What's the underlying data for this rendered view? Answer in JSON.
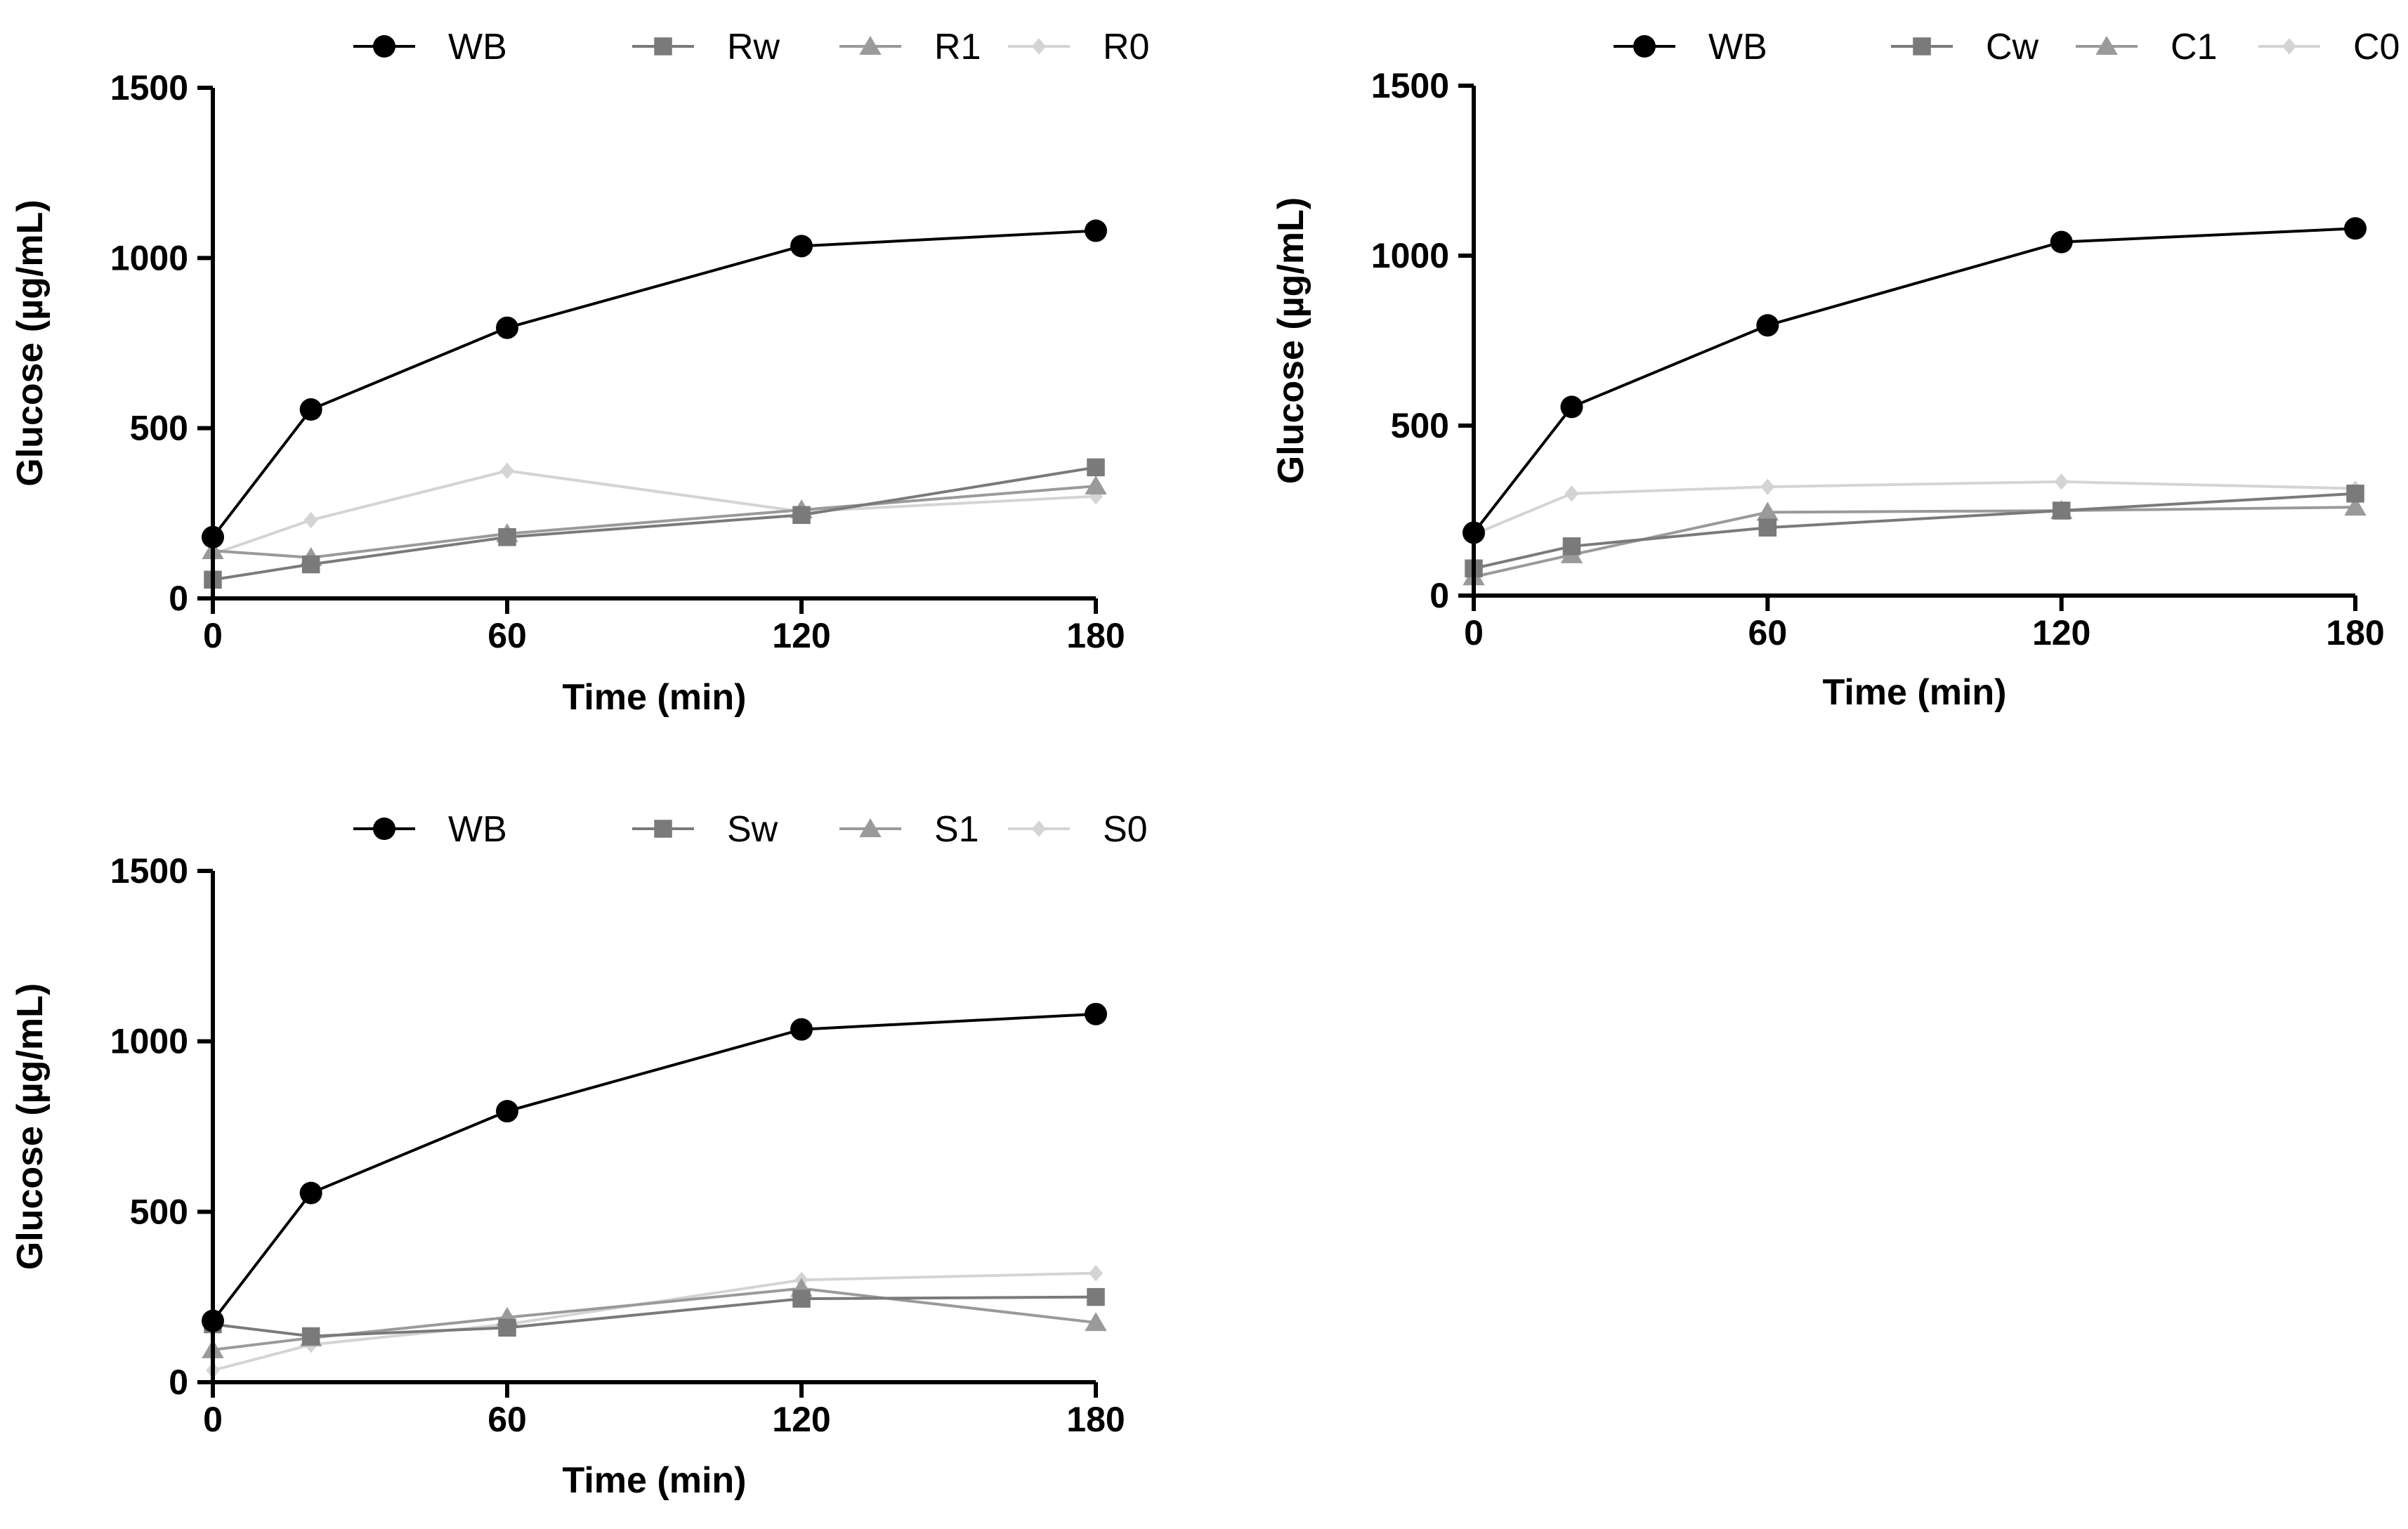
{
  "chart_data": [
    {
      "type": "line",
      "xlabel": "Time (min)",
      "ylabel": "Glucose (µg/mL)",
      "xlim": [
        0,
        180
      ],
      "ylim": [
        0,
        1500
      ],
      "xticks": [
        0,
        60,
        120,
        180
      ],
      "yticks": [
        0,
        500,
        1000,
        1500
      ],
      "x": [
        0,
        20,
        60,
        120,
        180
      ],
      "legend_position": "top",
      "series": [
        {
          "name": "WB",
          "marker": "circle",
          "color": "#000000",
          "values": [
            180,
            555,
            795,
            1035,
            1080
          ]
        },
        {
          "name": "Rw",
          "marker": "square",
          "color": "#7a7a7a",
          "values": [
            55,
            100,
            180,
            245,
            385
          ]
        },
        {
          "name": "R1",
          "marker": "triangle",
          "color": "#9a9a9a",
          "values": [
            140,
            120,
            190,
            260,
            330
          ]
        },
        {
          "name": "R0",
          "marker": "diamond",
          "color": "#d4d4d4",
          "values": [
            130,
            230,
            375,
            255,
            300
          ]
        }
      ]
    },
    {
      "type": "line",
      "xlabel": "Time (min)",
      "ylabel": "Glucose (µg/mL)",
      "xlim": [
        0,
        180
      ],
      "ylim": [
        0,
        1500
      ],
      "xticks": [
        0,
        60,
        120,
        180
      ],
      "yticks": [
        0,
        500,
        1000,
        1500
      ],
      "x": [
        0,
        20,
        60,
        120,
        180
      ],
      "legend_position": "top",
      "series": [
        {
          "name": "WB",
          "marker": "circle",
          "color": "#000000",
          "values": [
            185,
            555,
            795,
            1040,
            1080
          ]
        },
        {
          "name": "Cw",
          "marker": "square",
          "color": "#7a7a7a",
          "values": [
            80,
            145,
            200,
            250,
            300
          ]
        },
        {
          "name": "C1",
          "marker": "triangle",
          "color": "#9a9a9a",
          "values": [
            55,
            120,
            245,
            250,
            260
          ]
        },
        {
          "name": "C0",
          "marker": "diamond",
          "color": "#d4d4d4",
          "values": [
            180,
            300,
            320,
            335,
            315
          ]
        }
      ]
    },
    {
      "type": "line",
      "xlabel": "Time (min)",
      "ylabel": "Glucose (µg/mL)",
      "xlim": [
        0,
        180
      ],
      "ylim": [
        0,
        1500
      ],
      "xticks": [
        0,
        60,
        120,
        180
      ],
      "yticks": [
        0,
        500,
        1000,
        1500
      ],
      "x": [
        0,
        20,
        60,
        120,
        180
      ],
      "legend_position": "top",
      "series": [
        {
          "name": "WB",
          "marker": "circle",
          "color": "#000000",
          "values": [
            180,
            555,
            795,
            1035,
            1080
          ]
        },
        {
          "name": "Sw",
          "marker": "square",
          "color": "#7a7a7a",
          "values": [
            170,
            135,
            160,
            245,
            250
          ]
        },
        {
          "name": "S1",
          "marker": "triangle",
          "color": "#9a9a9a",
          "values": [
            95,
            130,
            190,
            275,
            175
          ]
        },
        {
          "name": "S0",
          "marker": "diamond",
          "color": "#d4d4d4",
          "values": [
            35,
            110,
            170,
            300,
            320
          ]
        }
      ]
    }
  ]
}
